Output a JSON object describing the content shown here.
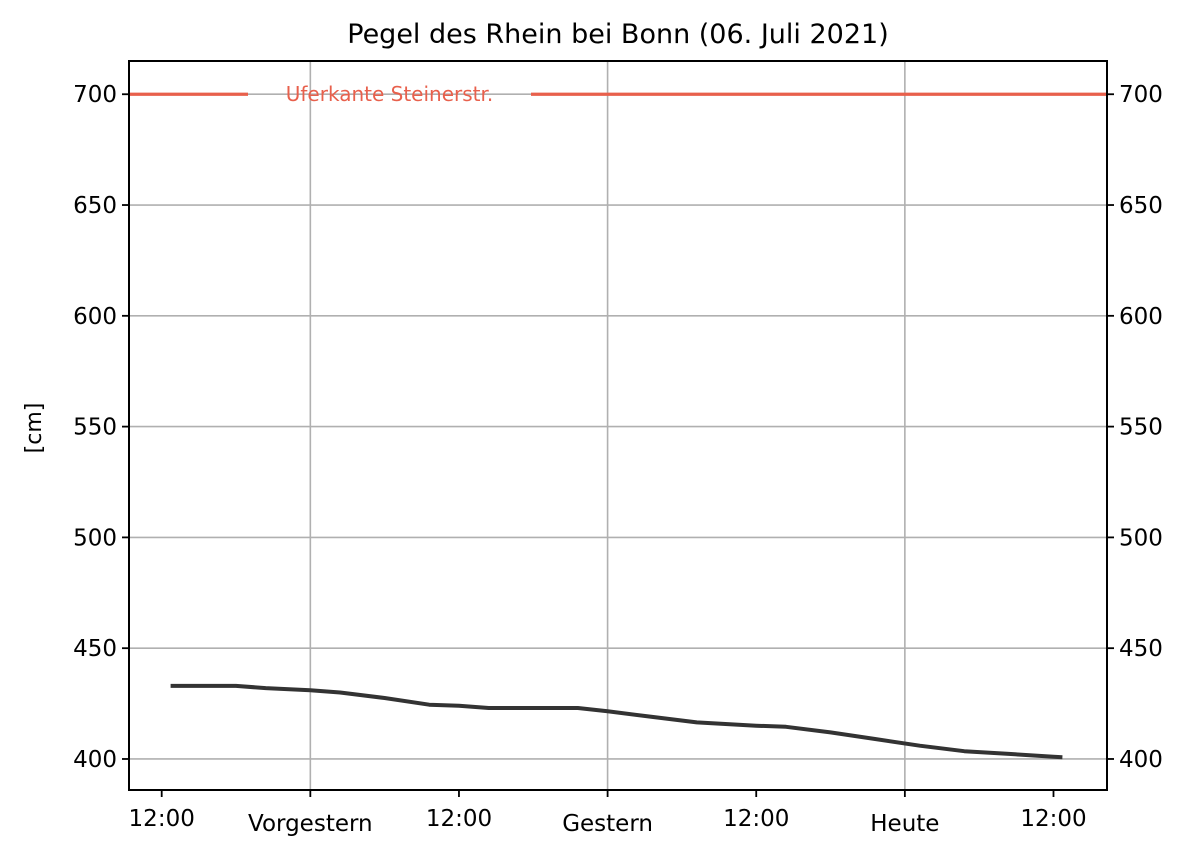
{
  "chart_data": {
    "type": "line",
    "title": "Pegel des Rhein bei Bonn (06. Juli 2021)",
    "ylabel": "[cm]",
    "xlabel": "",
    "ylim": [
      386,
      715
    ],
    "xlim": [
      -0.11,
      3.18
    ],
    "yticks": [
      400,
      450,
      500,
      550,
      600,
      650,
      700
    ],
    "xticks": [
      {
        "pos": 0,
        "label": "12:00"
      },
      {
        "pos": 0.5,
        "label": "Vorgestern"
      },
      {
        "pos": 1,
        "label": "12:00"
      },
      {
        "pos": 1.5,
        "label": "Gestern"
      },
      {
        "pos": 2,
        "label": "12:00"
      },
      {
        "pos": 2.5,
        "label": "Heute"
      },
      {
        "pos": 3,
        "label": "12:00"
      }
    ],
    "grid": true,
    "secondary_y_axis": true,
    "reference_line": {
      "value": 700,
      "label": "Uferkante Steinerstr.",
      "color": "#e8604c"
    },
    "series": [
      {
        "color": "#333333",
        "x": [
          0.03,
          0.25,
          0.35,
          0.5,
          0.6,
          0.75,
          0.9,
          1.0,
          1.1,
          1.25,
          1.4,
          1.5,
          1.65,
          1.8,
          2.0,
          2.1,
          2.25,
          2.4,
          2.55,
          2.7,
          2.85,
          3.0,
          3.03
        ],
        "y": [
          433,
          433,
          432,
          431,
          430,
          427.5,
          424.5,
          424,
          423,
          423,
          423,
          421.5,
          419,
          416.5,
          415,
          414.5,
          412,
          409,
          406,
          403.5,
          402.3,
          401,
          400.8
        ]
      }
    ]
  }
}
